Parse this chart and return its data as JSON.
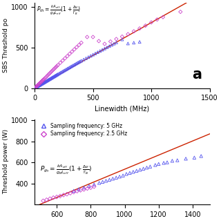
{
  "panel_a": {
    "xlabel": "Linewidth (MHz)",
    "ylabel": "SBS Threshold po",
    "xlim": [
      0,
      1500
    ],
    "ylim": [
      0,
      1050
    ],
    "xticks": [
      0,
      500,
      1000,
      1500
    ],
    "yticks": [
      0,
      500,
      1000
    ],
    "label": "a",
    "line_color": "#cc2200",
    "scatter1_color": "#5555ee",
    "scatter2_color": "#cc44cc",
    "scatter1_x": [
      5,
      10,
      15,
      20,
      25,
      30,
      35,
      40,
      45,
      50,
      55,
      60,
      65,
      70,
      75,
      80,
      85,
      90,
      95,
      100,
      105,
      110,
      115,
      120,
      125,
      130,
      135,
      140,
      145,
      150,
      155,
      160,
      165,
      170,
      175,
      180,
      185,
      190,
      195,
      200,
      210,
      220,
      230,
      240,
      250,
      260,
      270,
      280,
      290,
      300,
      310,
      320,
      330,
      340,
      350,
      360,
      370,
      380,
      390,
      400,
      420,
      440,
      460,
      480,
      500,
      520,
      540,
      560,
      580,
      600,
      620,
      640,
      660,
      680,
      700,
      750,
      800,
      850,
      900
    ],
    "scatter1_y": [
      5,
      10,
      14,
      19,
      23,
      27,
      32,
      36,
      40,
      45,
      49,
      53,
      57,
      62,
      66,
      70,
      74,
      79,
      83,
      87,
      92,
      96,
      100,
      105,
      109,
      113,
      117,
      122,
      126,
      130,
      135,
      139,
      143,
      147,
      152,
      156,
      160,
      165,
      169,
      173,
      181,
      190,
      198,
      206,
      215,
      223,
      231,
      240,
      248,
      256,
      265,
      273,
      281,
      289,
      297,
      306,
      314,
      322,
      330,
      338,
      353,
      368,
      383,
      398,
      413,
      428,
      443,
      458,
      473,
      488,
      503,
      518,
      533,
      548,
      563,
      600,
      550,
      560,
      570
    ],
    "scatter2_x": [
      5,
      10,
      15,
      20,
      25,
      30,
      35,
      40,
      45,
      50,
      55,
      60,
      65,
      70,
      75,
      80,
      90,
      100,
      110,
      120,
      130,
      140,
      150,
      160,
      170,
      180,
      190,
      200,
      220,
      240,
      260,
      280,
      300,
      320,
      340,
      360,
      380,
      400,
      450,
      500,
      550,
      600,
      650,
      700,
      750,
      800,
      850,
      900,
      950,
      1000,
      1050,
      1100,
      1250
    ],
    "scatter2_y": [
      8,
      15,
      22,
      29,
      36,
      43,
      50,
      56,
      63,
      70,
      77,
      84,
      91,
      98,
      105,
      112,
      126,
      140,
      155,
      170,
      184,
      199,
      213,
      228,
      242,
      256,
      271,
      285,
      313,
      340,
      368,
      395,
      423,
      450,
      478,
      505,
      532,
      560,
      630,
      630,
      580,
      545,
      575,
      605,
      635,
      665,
      700,
      735,
      770,
      810,
      845,
      875,
      940
    ],
    "line_x": [
      0,
      1300
    ],
    "line_y": [
      0,
      1050
    ]
  },
  "panel_b": {
    "legend_entry1": "Sampling frequency: 5 GHz",
    "legend_entry2": "Sampling frequency: 2.5 GHz",
    "formula": "$P_{th} = \\frac{kA_{eff}}{g_B L_{eff}}(1 + \\frac{\\Delta\\nu}{\\Gamma_B})$",
    "xlabel": "",
    "ylabel": "Threshold power (W)",
    "xlim": [
      470,
      1500
    ],
    "ylim": [
      200,
      1010
    ],
    "xticks": [],
    "yticks": [
      400,
      600,
      800,
      1000
    ],
    "line_color": "#cc2200",
    "scatter1_color": "#5555ee",
    "scatter2_color": "#cc44cc",
    "scatter1_x": [
      700,
      730,
      760,
      790,
      820,
      850,
      870,
      890,
      910,
      930,
      950,
      970,
      990,
      1010,
      1030,
      1050,
      1070,
      1090,
      1110,
      1130,
      1150,
      1180,
      1200,
      1230,
      1250,
      1280,
      1310,
      1360,
      1410,
      1450
    ],
    "scatter1_y": [
      330,
      345,
      360,
      375,
      390,
      405,
      415,
      425,
      435,
      445,
      455,
      465,
      475,
      490,
      500,
      510,
      520,
      530,
      540,
      550,
      560,
      575,
      585,
      595,
      600,
      615,
      620,
      635,
      645,
      660
    ],
    "scatter2_x": [
      520,
      540,
      560,
      580,
      600,
      620,
      640,
      660,
      680,
      700,
      720,
      740,
      760,
      780,
      800,
      820
    ],
    "scatter2_y": [
      235,
      245,
      255,
      265,
      272,
      280,
      290,
      298,
      308,
      318,
      327,
      335,
      343,
      352,
      360,
      370
    ],
    "line_x": [
      470,
      1500
    ],
    "line_y": [
      180,
      870
    ]
  }
}
